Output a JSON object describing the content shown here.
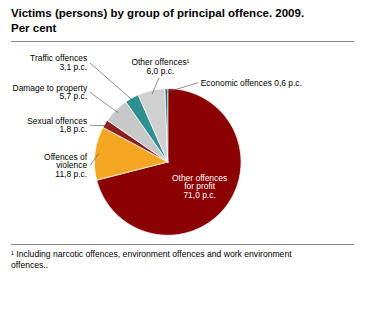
{
  "chart_data": {
    "type": "pie",
    "title": "Victims (persons) by group of principal offence. 2009.\nPer cent",
    "footnote": "¹ Including narcotic offences, environment offences and work environment\noffences..",
    "values": [
      71.0,
      11.8,
      1.8,
      5.7,
      3.1,
      6.0,
      0.6
    ],
    "value_labels": [
      "Other offences\nfor profit\n71,0 p.c.",
      "Offences of\nviolence\n11,8 p.c.",
      "Sexual offences\n1,8 p.c.",
      "Damage to property\n5,7 p.c.",
      "Traffic offences\n3,1 p.c.",
      "Other offences¹\n6,0 p.c.",
      "Economic offences 0,6 p.c."
    ],
    "colors": [
      "#8B0000",
      "#F5A623",
      "#8B2020",
      "#C8C8C8",
      "#2E9090",
      "#D0D0D0",
      "#1C7070"
    ],
    "data_labels": true
  }
}
